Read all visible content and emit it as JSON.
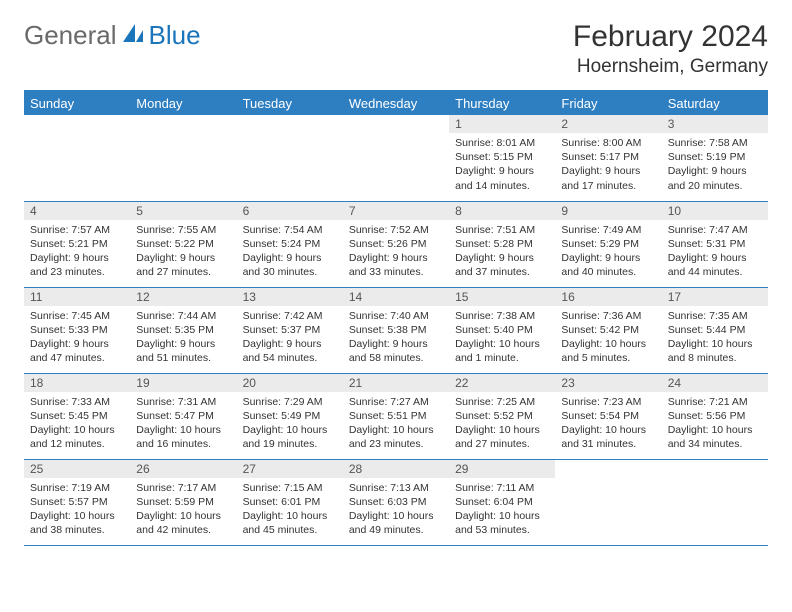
{
  "logo": {
    "general": "General",
    "blue": "Blue"
  },
  "header": {
    "month": "February 2024",
    "location": "Hoernsheim, Germany"
  },
  "colors": {
    "header_bg": "#2e7ec2",
    "header_text": "#ffffff",
    "daynum_bg": "#ebebeb",
    "border": "#2e7ec2",
    "text": "#333333",
    "logo_gray": "#6a6a6a",
    "logo_blue": "#1a75bb"
  },
  "dayHeaders": [
    "Sunday",
    "Monday",
    "Tuesday",
    "Wednesday",
    "Thursday",
    "Friday",
    "Saturday"
  ],
  "weeks": [
    [
      null,
      null,
      null,
      null,
      {
        "n": "1",
        "sunrise": "8:01 AM",
        "sunset": "5:15 PM",
        "daylight": "9 hours and 14 minutes."
      },
      {
        "n": "2",
        "sunrise": "8:00 AM",
        "sunset": "5:17 PM",
        "daylight": "9 hours and 17 minutes."
      },
      {
        "n": "3",
        "sunrise": "7:58 AM",
        "sunset": "5:19 PM",
        "daylight": "9 hours and 20 minutes."
      }
    ],
    [
      {
        "n": "4",
        "sunrise": "7:57 AM",
        "sunset": "5:21 PM",
        "daylight": "9 hours and 23 minutes."
      },
      {
        "n": "5",
        "sunrise": "7:55 AM",
        "sunset": "5:22 PM",
        "daylight": "9 hours and 27 minutes."
      },
      {
        "n": "6",
        "sunrise": "7:54 AM",
        "sunset": "5:24 PM",
        "daylight": "9 hours and 30 minutes."
      },
      {
        "n": "7",
        "sunrise": "7:52 AM",
        "sunset": "5:26 PM",
        "daylight": "9 hours and 33 minutes."
      },
      {
        "n": "8",
        "sunrise": "7:51 AM",
        "sunset": "5:28 PM",
        "daylight": "9 hours and 37 minutes."
      },
      {
        "n": "9",
        "sunrise": "7:49 AM",
        "sunset": "5:29 PM",
        "daylight": "9 hours and 40 minutes."
      },
      {
        "n": "10",
        "sunrise": "7:47 AM",
        "sunset": "5:31 PM",
        "daylight": "9 hours and 44 minutes."
      }
    ],
    [
      {
        "n": "11",
        "sunrise": "7:45 AM",
        "sunset": "5:33 PM",
        "daylight": "9 hours and 47 minutes."
      },
      {
        "n": "12",
        "sunrise": "7:44 AM",
        "sunset": "5:35 PM",
        "daylight": "9 hours and 51 minutes."
      },
      {
        "n": "13",
        "sunrise": "7:42 AM",
        "sunset": "5:37 PM",
        "daylight": "9 hours and 54 minutes."
      },
      {
        "n": "14",
        "sunrise": "7:40 AM",
        "sunset": "5:38 PM",
        "daylight": "9 hours and 58 minutes."
      },
      {
        "n": "15",
        "sunrise": "7:38 AM",
        "sunset": "5:40 PM",
        "daylight": "10 hours and 1 minute."
      },
      {
        "n": "16",
        "sunrise": "7:36 AM",
        "sunset": "5:42 PM",
        "daylight": "10 hours and 5 minutes."
      },
      {
        "n": "17",
        "sunrise": "7:35 AM",
        "sunset": "5:44 PM",
        "daylight": "10 hours and 8 minutes."
      }
    ],
    [
      {
        "n": "18",
        "sunrise": "7:33 AM",
        "sunset": "5:45 PM",
        "daylight": "10 hours and 12 minutes."
      },
      {
        "n": "19",
        "sunrise": "7:31 AM",
        "sunset": "5:47 PM",
        "daylight": "10 hours and 16 minutes."
      },
      {
        "n": "20",
        "sunrise": "7:29 AM",
        "sunset": "5:49 PM",
        "daylight": "10 hours and 19 minutes."
      },
      {
        "n": "21",
        "sunrise": "7:27 AM",
        "sunset": "5:51 PM",
        "daylight": "10 hours and 23 minutes."
      },
      {
        "n": "22",
        "sunrise": "7:25 AM",
        "sunset": "5:52 PM",
        "daylight": "10 hours and 27 minutes."
      },
      {
        "n": "23",
        "sunrise": "7:23 AM",
        "sunset": "5:54 PM",
        "daylight": "10 hours and 31 minutes."
      },
      {
        "n": "24",
        "sunrise": "7:21 AM",
        "sunset": "5:56 PM",
        "daylight": "10 hours and 34 minutes."
      }
    ],
    [
      {
        "n": "25",
        "sunrise": "7:19 AM",
        "sunset": "5:57 PM",
        "daylight": "10 hours and 38 minutes."
      },
      {
        "n": "26",
        "sunrise": "7:17 AM",
        "sunset": "5:59 PM",
        "daylight": "10 hours and 42 minutes."
      },
      {
        "n": "27",
        "sunrise": "7:15 AM",
        "sunset": "6:01 PM",
        "daylight": "10 hours and 45 minutes."
      },
      {
        "n": "28",
        "sunrise": "7:13 AM",
        "sunset": "6:03 PM",
        "daylight": "10 hours and 49 minutes."
      },
      {
        "n": "29",
        "sunrise": "7:11 AM",
        "sunset": "6:04 PM",
        "daylight": "10 hours and 53 minutes."
      },
      null,
      null
    ]
  ],
  "labels": {
    "sunrise": "Sunrise:",
    "sunset": "Sunset:",
    "daylight": "Daylight:"
  }
}
